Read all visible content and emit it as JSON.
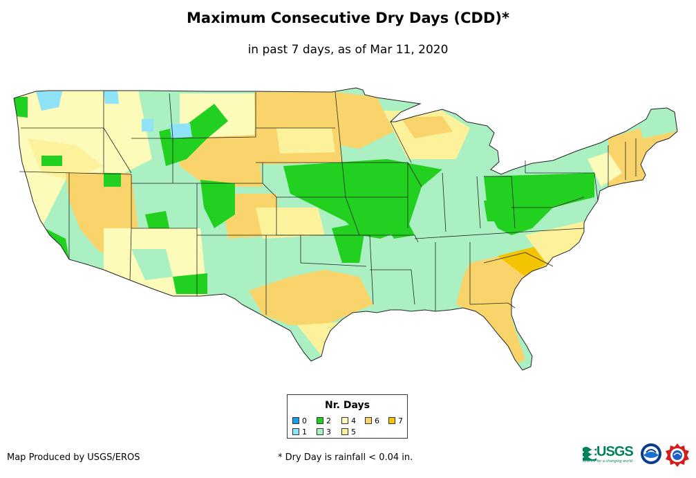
{
  "title": "Maximum Consecutive Dry Days (CDD)*",
  "subtitle": "in past 7 days, as of Mar 11, 2020",
  "legend": {
    "title": "Nr. Days",
    "items": [
      {
        "label": "0",
        "color": "#1a9ee8"
      },
      {
        "label": "1",
        "color": "#8fe3f7"
      },
      {
        "label": "2",
        "color": "#22d11f"
      },
      {
        "label": "3",
        "color": "#aaf0c2"
      },
      {
        "label": "4",
        "color": "#fdfbb9"
      },
      {
        "label": "5",
        "color": "#fbf29b"
      },
      {
        "label": "6",
        "color": "#f9d46b"
      },
      {
        "label": "7",
        "color": "#f5c400"
      }
    ]
  },
  "credit": "Map Produced by USGS/EROS",
  "footnote": "* Dry Day is rainfall < 0.04 in.",
  "logos": {
    "usgs": {
      "word": "USGS",
      "tagline": "science for a changing world",
      "color": "#00805a"
    },
    "noaa": {
      "name": "noaa"
    },
    "nws": {
      "name": "nws"
    }
  }
}
